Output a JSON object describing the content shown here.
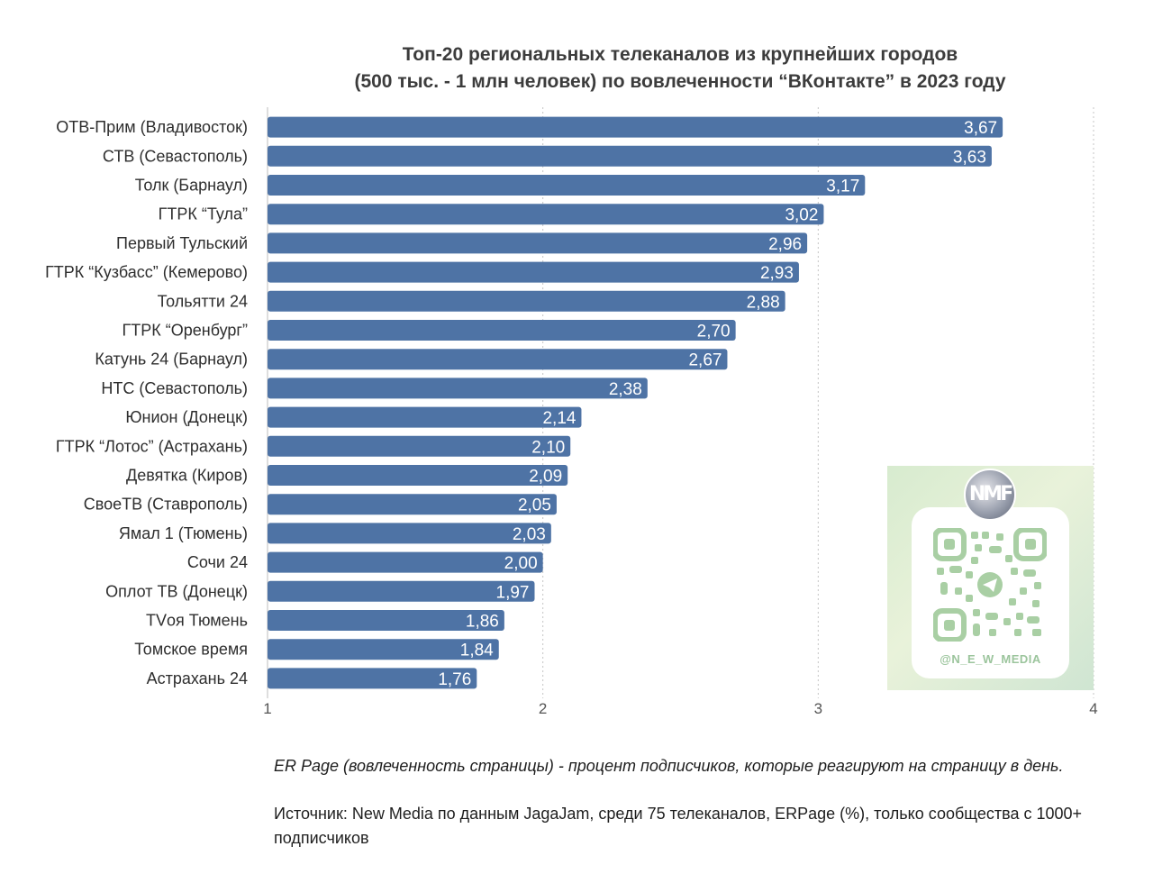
{
  "chart_data": {
    "type": "bar",
    "orientation": "horizontal",
    "title": "Топ-20 региональных телеканалов из крупнейших городов (500 тыс. - 1 млн человек) по вовлеченности “ВКонтакте” в 2023 году",
    "title_lines": [
      "Топ-20 региональных телеканалов из крупнейших городов",
      "(500 тыс. - 1 млн человек) по вовлеченности “ВКонтакте” в 2023 году"
    ],
    "categories": [
      "ОТВ-Прим (Владивосток)",
      "СТВ (Севастополь)",
      "Толк (Барнаул)",
      "ГТРК “Тула”",
      "Первый Тульский",
      "ГТРК “Кузбасс” (Кемерово)",
      "Тольятти 24",
      "ГТРК “Оренбург”",
      "Катунь 24 (Барнаул)",
      "НТС (Севастополь)",
      "Юнион (Донецк)",
      "ГТРК “Лотос” (Астрахань)",
      "Девятка (Киров)",
      "СвоеТВ (Ставрополь)",
      "Ямал 1 (Тюмень)",
      "Сочи 24",
      "Оплот ТВ (Донецк)",
      "TVоя Тюмень",
      "Томское время",
      "Астрахань 24"
    ],
    "values": [
      3.67,
      3.63,
      3.17,
      3.02,
      2.96,
      2.93,
      2.88,
      2.7,
      2.67,
      2.38,
      2.14,
      2.1,
      2.09,
      2.05,
      2.03,
      2.0,
      1.97,
      1.86,
      1.84,
      1.76
    ],
    "value_labels": [
      "3,67",
      "3,63",
      "3,17",
      "3,02",
      "2,96",
      "2,93",
      "2,88",
      "2,70",
      "2,67",
      "2,38",
      "2,14",
      "2,10",
      "2,09",
      "2,05",
      "2,03",
      "2,00",
      "1,97",
      "1,86",
      "1,84",
      "1,76"
    ],
    "xlim": [
      1,
      4
    ],
    "xticks": [
      1,
      2,
      3,
      4
    ],
    "xtick_labels": [
      "1",
      "2",
      "3",
      "4"
    ],
    "xlabel": "",
    "ylabel": "",
    "grid": "vertical dotted",
    "legend": "none",
    "bar_color": "#4e73a5",
    "label_color": "#ffffff"
  },
  "qr": {
    "handle": "@N_E_W_MEDIA",
    "avatar_text": "NMF",
    "accent": "#9cc59d"
  },
  "footnotes": {
    "definition": "ER Page (вовлеченность страницы) - процент подписчиков, которые реагируют на страницу в день.",
    "source": "Источник: New Media по данным JagaJam, среди 75 телеканалов, ERPage (%), только сообщества с 1000+ подписчиков"
  }
}
